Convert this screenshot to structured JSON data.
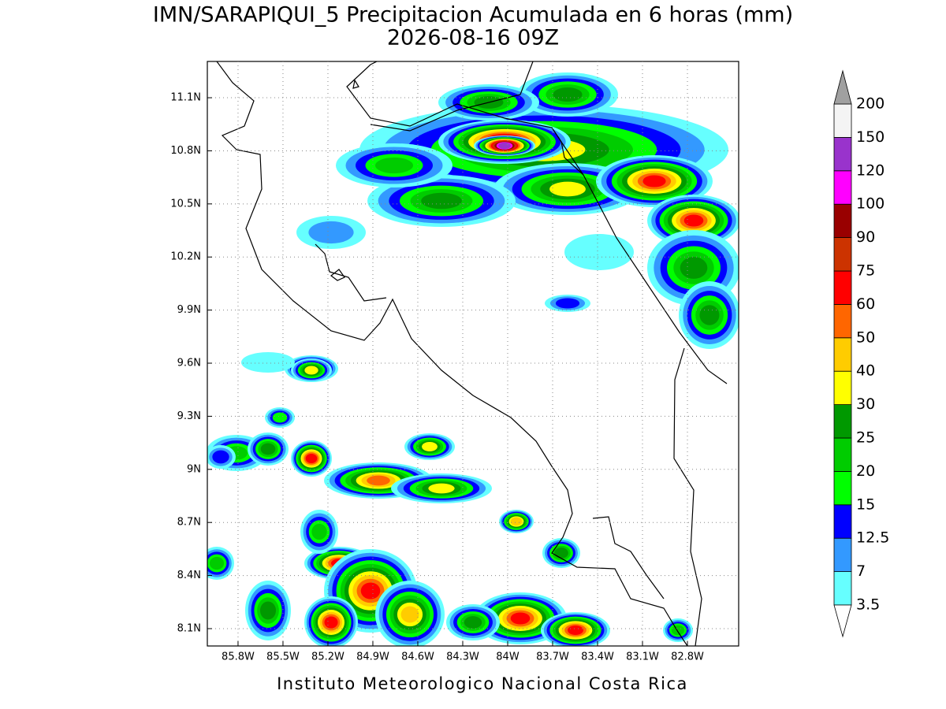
{
  "map": {
    "title": "IMN/SARAPIQUI_5 Precipitacion Acumulada en 6 horas (mm)",
    "subtitle": "2026-08-16 09Z",
    "footer": "Instituto Meteorologico Nacional Costa Rica",
    "xlim": [
      -86.005,
      -82.458
    ],
    "ylim": [
      8.002,
      11.305
    ],
    "xticks": [
      {
        "value": -85.8,
        "label": "85.8W"
      },
      {
        "value": -85.5,
        "label": "85.5W"
      },
      {
        "value": -85.2,
        "label": "85.2W"
      },
      {
        "value": -84.9,
        "label": "84.9W"
      },
      {
        "value": -84.6,
        "label": "84.6W"
      },
      {
        "value": -84.3,
        "label": "84.3W"
      },
      {
        "value": -84.0,
        "label": "84W"
      },
      {
        "value": -83.7,
        "label": "83.7W"
      },
      {
        "value": -83.4,
        "label": "83.4W"
      },
      {
        "value": -83.1,
        "label": "83.1W"
      },
      {
        "value": -82.8,
        "label": "82.8W"
      }
    ],
    "yticks": [
      {
        "value": 8.1,
        "label": "8.1N"
      },
      {
        "value": 8.4,
        "label": "8.4N"
      },
      {
        "value": 8.7,
        "label": "8.7N"
      },
      {
        "value": 9.0,
        "label": "9N"
      },
      {
        "value": 9.3,
        "label": "9.3N"
      },
      {
        "value": 9.6,
        "label": "9.6N"
      },
      {
        "value": 9.9,
        "label": "9.9N"
      },
      {
        "value": 10.2,
        "label": "10.2N"
      },
      {
        "value": 10.5,
        "label": "10.5N"
      },
      {
        "value": 10.8,
        "label": "10.8N"
      },
      {
        "value": 11.1,
        "label": "11.1N"
      }
    ],
    "grid": true,
    "colorbar": {
      "levels": [
        3.5,
        7,
        12.5,
        15,
        20,
        25,
        30,
        40,
        50,
        60,
        75,
        90,
        100,
        120,
        150,
        200
      ],
      "colors": [
        "#66ffff",
        "#3399ff",
        "#0000ff",
        "#00ff00",
        "#00cc00",
        "#009900",
        "#ffff00",
        "#ffcc00",
        "#ff6600",
        "#ff0000",
        "#cc3300",
        "#990000",
        "#ff00ff",
        "#9933cc",
        "#f4f4f4"
      ],
      "under_color": "#ffffff",
      "over_color": "#a0a0a0"
    }
  }
}
